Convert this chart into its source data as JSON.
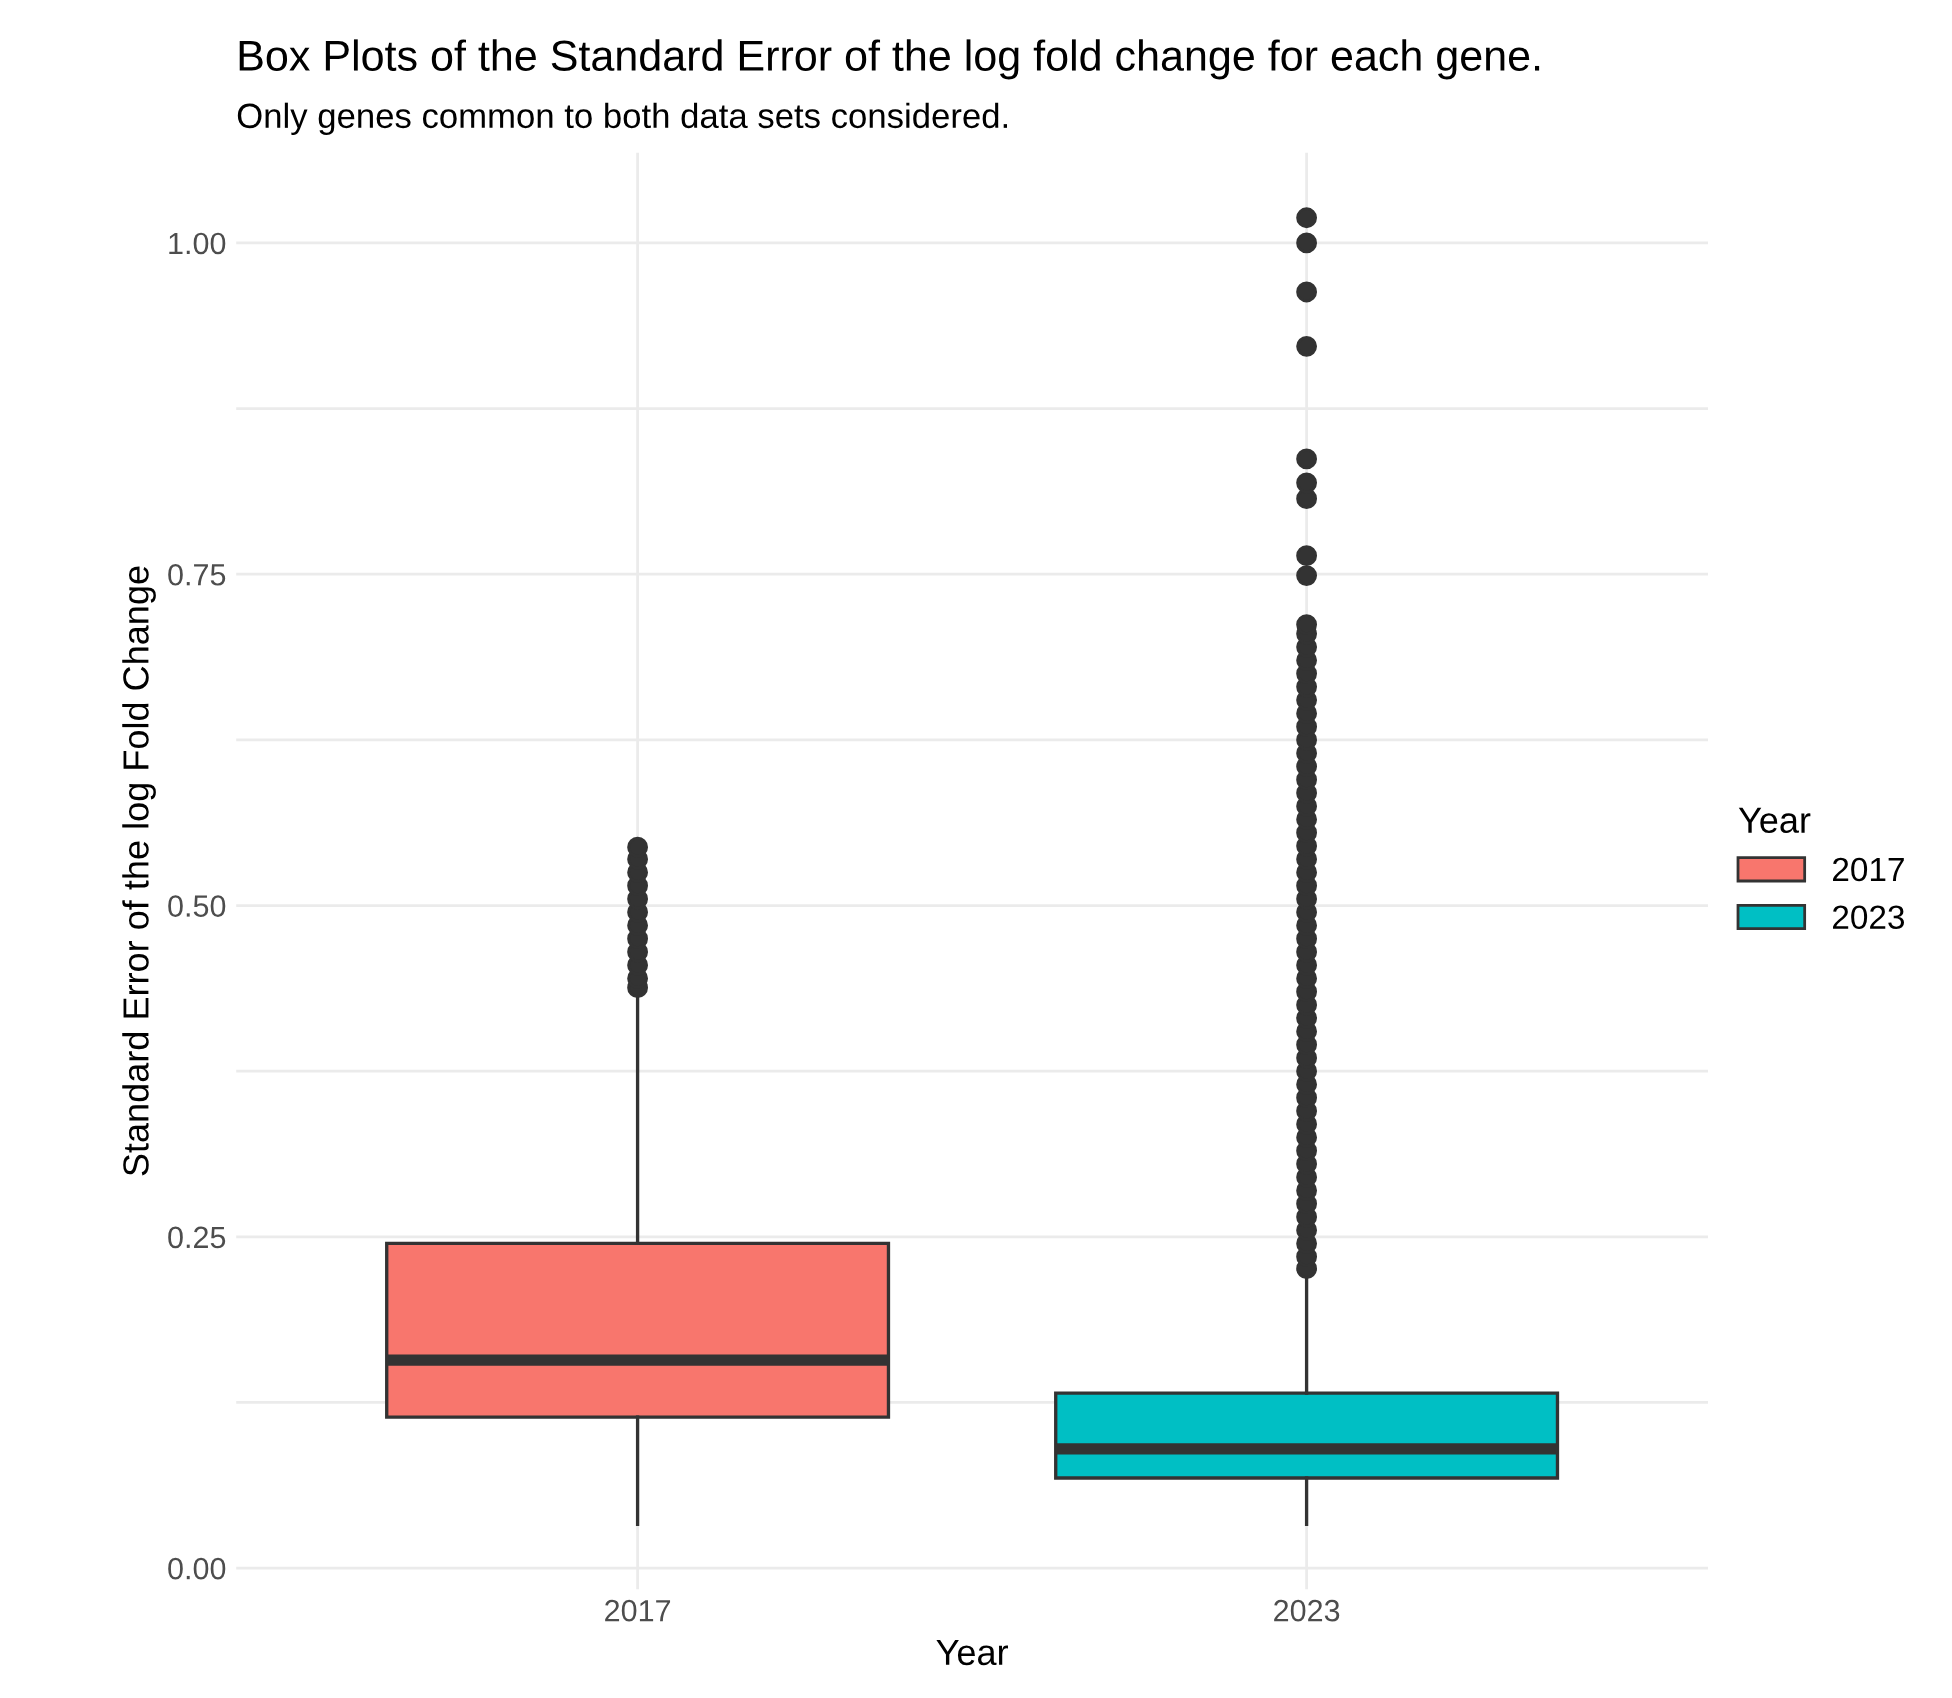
{
  "chart_data": {
    "type": "box",
    "title": "Box Plots of the Standard Error of the log fold change for each gene.",
    "subtitle": "Only genes common to both data sets considered.",
    "xlabel": "Year",
    "ylabel": "Standard Error of the log Fold Change",
    "legend_title": "Year",
    "categories": [
      "2017",
      "2023"
    ],
    "series": [
      {
        "name": "2017",
        "color": "#f8766d",
        "boxes": [
          {
            "low": 0.033,
            "q1": 0.114,
            "median": 0.157,
            "q3": 0.245,
            "high": 0.433,
            "outliers": [
              0.438,
              0.445,
              0.455,
              0.465,
              0.475,
              0.485,
              0.495,
              0.505,
              0.515,
              0.525,
              0.535,
              0.544
            ]
          },
          null
        ]
      },
      {
        "name": "2023",
        "color": "#00bfc4",
        "boxes": [
          null,
          {
            "low": 0.033,
            "q1": 0.068,
            "median": 0.09,
            "q3": 0.132,
            "high": 0.222,
            "outliers": [
              0.226,
              0.235,
              0.245,
              0.255,
              0.265,
              0.275,
              0.285,
              0.295,
              0.305,
              0.315,
              0.325,
              0.335,
              0.345,
              0.355,
              0.365,
              0.375,
              0.385,
              0.395,
              0.405,
              0.415,
              0.425,
              0.435,
              0.445,
              0.455,
              0.465,
              0.475,
              0.485,
              0.495,
              0.505,
              0.515,
              0.525,
              0.535,
              0.545,
              0.555,
              0.565,
              0.575,
              0.585,
              0.595,
              0.605,
              0.615,
              0.625,
              0.635,
              0.645,
              0.655,
              0.665,
              0.675,
              0.685,
              0.695,
              0.705,
              0.712,
              0.749,
              0.764,
              0.807,
              0.819,
              0.837,
              0.922,
              0.963,
              1.0,
              1.019
            ]
          }
        ]
      }
    ],
    "ylim": [
      -0.016,
      1.068
    ],
    "yticks": [
      {
        "value": 0,
        "label": "0.00"
      },
      {
        "value": 0.125,
        "label": null
      },
      {
        "value": 0.25,
        "label": "0.25"
      },
      {
        "value": 0.375,
        "label": null
      },
      {
        "value": 0.5,
        "label": "0.50"
      },
      {
        "value": 0.625,
        "label": null
      },
      {
        "value": 0.75,
        "label": "0.75"
      },
      {
        "value": 0.875,
        "label": null
      },
      {
        "value": 1,
        "label": "1.00"
      }
    ],
    "grid": true,
    "legend": "right"
  }
}
